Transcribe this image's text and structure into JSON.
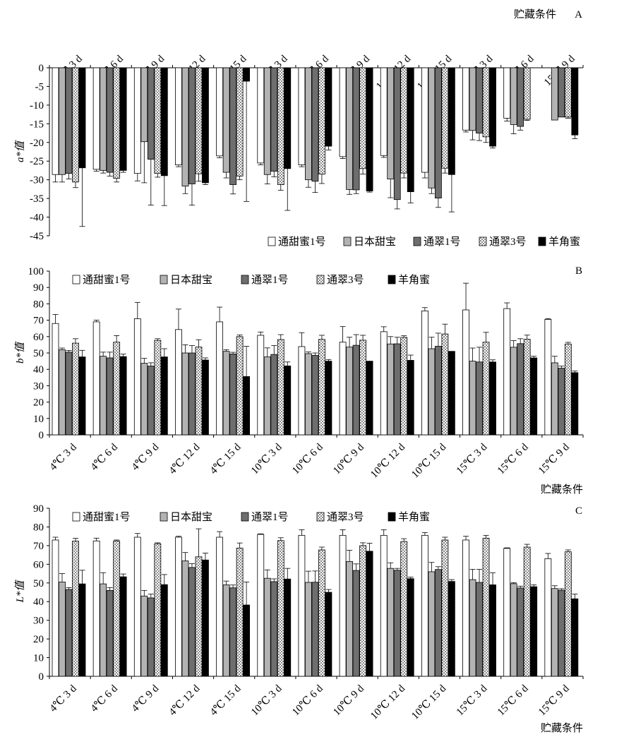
{
  "xlabel": "贮藏条件",
  "categories": [
    "4℃ 3 d",
    "4℃ 6 d",
    "4℃ 9 d",
    "4℃ 12 d",
    "4℃ 15 d",
    "10℃ 3 d",
    "10℃ 6 d",
    "10℃ 9 d",
    "10℃ 12 d",
    "10℃ 15 d",
    "15℃ 3 d",
    "15℃ 6 d",
    "15℃ 9 d"
  ],
  "series_names": [
    "通甜蜜1号",
    "日本甜宝",
    "通翠1号",
    "通翠3号",
    "羊角蜜"
  ],
  "series_styles": [
    {
      "fill": "#ffffff",
      "pattern": false
    },
    {
      "fill": "#b3b3b3",
      "pattern": false
    },
    {
      "fill": "#6e6e6e",
      "pattern": false
    },
    {
      "fill": "#ffffff",
      "pattern": true
    },
    {
      "fill": "#000000",
      "pattern": false
    }
  ],
  "chart_data": [
    {
      "panel_label": "A",
      "type": "bar",
      "ylabel": "a*值",
      "ylim": [
        -45,
        0
      ],
      "yticks": [
        0,
        -5,
        -10,
        -15,
        -20,
        -25,
        -30,
        -35,
        -40,
        -45
      ],
      "x_axis_position": "top",
      "legend_placement": "bottom-right",
      "categories": [
        "4℃ 3 d",
        "4℃ 6 d",
        "4℃ 9 d",
        "4℃ 12 d",
        "4℃ 15 d",
        "10℃ 3 d",
        "10℃ 6 d",
        "10℃ 9 d",
        "10℃ 12 d",
        "10℃ 15 d",
        "15℃ 3 d",
        "15℃ 6 d",
        "15℃ 9 d"
      ],
      "series": [
        {
          "name": "通甜蜜1号",
          "values": [
            -28.6,
            -27.2,
            -28.3,
            -26.0,
            -23.6,
            -25.5,
            -26.0,
            -23.8,
            -23.5,
            -28.0,
            -16.7,
            -13.5,
            0
          ],
          "errors": [
            2,
            0.5,
            2,
            0.5,
            0.5,
            0.5,
            0.5,
            0.5,
            0.5,
            1.5,
            0.5,
            0.8,
            0
          ]
        },
        {
          "name": "日本甜宝",
          "values": [
            -28.6,
            -27.5,
            -19.8,
            -31.7,
            -28.0,
            -28.6,
            -30.0,
            -32.6,
            -29.8,
            -32.2,
            -16.8,
            -15.2,
            -14.0
          ],
          "errors": [
            2,
            0.7,
            11,
            2,
            1.5,
            2.5,
            2,
            1.3,
            5,
            1.5,
            2.5,
            2.5,
            0
          ]
        },
        {
          "name": "通翠1号",
          "values": [
            -28.3,
            -28.0,
            -24.5,
            -31.1,
            -31.3,
            -27.7,
            -30.4,
            -32.7,
            -35.3,
            -34.9,
            -17.5,
            -15.7,
            -13.2
          ],
          "errors": [
            1.5,
            1,
            12.3,
            5.7,
            2.5,
            1.5,
            3,
            1,
            2.5,
            2.5,
            2,
            1,
            0
          ]
        },
        {
          "name": "通翠3号",
          "values": [
            -30.6,
            -29.6,
            -28.3,
            -28.4,
            -29.0,
            -31.3,
            -28.5,
            -27.0,
            -28.2,
            -26.9,
            -18.5,
            -13.8,
            -13.2
          ],
          "errors": [
            1.5,
            1,
            1,
            2,
            1,
            1.5,
            2.5,
            1.5,
            1.3,
            1.3,
            1.5,
            0.3,
            0.3
          ]
        },
        {
          "name": "羊角蜜",
          "values": [
            -26.8,
            -27.5,
            -28.9,
            -30.8,
            -3.6,
            -27.0,
            -21.0,
            -33.0,
            -33.2,
            -28.6,
            -21.0,
            0,
            -18.0
          ],
          "errors": [
            15.7,
            0.5,
            8,
            0.5,
            32.2,
            11.2,
            1,
            0.3,
            3,
            10,
            0.5,
            0,
            1
          ]
        }
      ]
    },
    {
      "panel_label": "B",
      "type": "bar",
      "ylabel": "b*值",
      "ylim": [
        0,
        100
      ],
      "yticks": [
        0,
        10,
        20,
        30,
        40,
        50,
        60,
        70,
        80,
        90,
        100
      ],
      "legend_placement": "top-left",
      "xlabel": "贮藏条件",
      "categories": [
        "4℃ 3 d",
        "4℃ 6 d",
        "4℃ 9 d",
        "4℃ 12 d",
        "4℃ 15 d",
        "10℃ 3 d",
        "10℃ 6 d",
        "10℃ 9 d",
        "10℃ 12 d",
        "10℃ 15 d",
        "15℃ 3 d",
        "15℃ 6 d",
        "15℃ 9 d"
      ],
      "series": [
        {
          "name": "通甜蜜1号",
          "values": [
            68.0,
            69.0,
            70.9,
            64.3,
            69.0,
            60.8,
            53.9,
            56.6,
            63.0,
            75.7,
            76.3,
            77.1,
            70.5
          ],
          "errors": [
            5.5,
            1,
            10,
            12.5,
            9,
            2,
            8.5,
            9.5,
            3,
            2,
            16.3,
            3.5,
            0.5
          ]
        },
        {
          "name": "日本甜宝",
          "values": [
            52.0,
            48.0,
            43.7,
            50.0,
            51.0,
            47.6,
            49.6,
            53.6,
            55.5,
            52.6,
            45.0,
            53.5,
            44.0
          ],
          "errors": [
            1,
            2.5,
            3,
            5,
            1,
            5.5,
            1,
            6,
            4.5,
            7,
            8,
            4,
            4
          ]
        },
        {
          "name": "通翠1号",
          "values": [
            50.5,
            47.0,
            42.0,
            50.0,
            49.4,
            49.1,
            48.5,
            54.7,
            55.6,
            54.1,
            44.5,
            55.7,
            40.7
          ],
          "errors": [
            1,
            3.5,
            2,
            4.5,
            1,
            5.4,
            1.5,
            6.5,
            4,
            8,
            9,
            3,
            1.3
          ]
        },
        {
          "name": "通翠3号",
          "values": [
            56.0,
            56.6,
            57.7,
            53.6,
            60.0,
            58.2,
            58.3,
            57.8,
            59.5,
            61.6,
            56.6,
            58.4,
            55.5
          ],
          "errors": [
            2.7,
            4,
            1,
            4.5,
            1,
            3,
            2.5,
            3,
            1,
            6,
            6,
            2.5,
            1
          ]
        },
        {
          "name": "羊角蜜",
          "values": [
            47.6,
            47.8,
            47.6,
            45.7,
            35.6,
            42.1,
            45.0,
            45.0,
            45.5,
            51.0,
            44.5,
            47.0,
            38.0
          ],
          "errors": [
            4,
            1.5,
            5,
            1.3,
            18.5,
            2.4,
            1,
            0,
            3.2,
            0,
            1.3,
            1,
            1
          ]
        }
      ]
    },
    {
      "panel_label": "C",
      "type": "bar",
      "ylabel": "L*值",
      "ylim": [
        0,
        90
      ],
      "yticks": [
        0,
        10,
        20,
        30,
        40,
        50,
        60,
        70,
        80,
        90
      ],
      "legend_placement": "top-left",
      "xlabel": "贮藏条件",
      "categories": [
        "4℃ 3 d",
        "4℃ 6 d",
        "4℃ 9 d",
        "4℃ 12 d",
        "4℃ 15 d",
        "10℃ 3 d",
        "10℃ 6 d",
        "10℃ 9 d",
        "10℃ 12 d",
        "10℃ 15 d",
        "15℃ 3 d",
        "15℃ 6 d",
        "15℃ 9 d"
      ],
      "series": [
        {
          "name": "通甜蜜1号",
          "values": [
            73.0,
            72.5,
            74.5,
            74.5,
            74.5,
            76.0,
            75.5,
            75.5,
            75.5,
            75.5,
            73.0,
            68.5,
            63.0
          ],
          "errors": [
            1.5,
            1.5,
            2,
            0.5,
            3,
            0.3,
            3,
            3,
            3,
            1.5,
            2,
            0.3,
            2.8
          ]
        },
        {
          "name": "日本甜宝",
          "values": [
            50.5,
            49.5,
            43.0,
            61.8,
            49.0,
            52.5,
            50.3,
            61.5,
            57.8,
            56.0,
            51.8,
            49.6,
            47.0
          ],
          "errors": [
            4.5,
            6,
            3,
            4.5,
            2,
            4.5,
            6,
            6,
            3,
            5,
            5.5,
            0.5,
            1.5
          ]
        },
        {
          "name": "通翠1号",
          "values": [
            46.5,
            46.0,
            42.0,
            58.3,
            47.4,
            50.7,
            50.4,
            56.7,
            56.8,
            57.2,
            50.3,
            47.3,
            46.1
          ],
          "errors": [
            1,
            1.5,
            2,
            2,
            1.5,
            1.5,
            6,
            3.5,
            1,
            1.5,
            7,
            1,
            0.8
          ]
        },
        {
          "name": "通翠3号",
          "values": [
            72.4,
            72.5,
            71.0,
            64.0,
            68.7,
            72.7,
            67.7,
            70.0,
            72.2,
            73.0,
            74.0,
            69.2,
            66.7
          ],
          "errors": [
            1.5,
            0.5,
            0.5,
            15,
            2.7,
            1.5,
            1.5,
            1.5,
            1.5,
            1.5,
            1.5,
            1.5,
            1
          ]
        },
        {
          "name": "羊角蜜",
          "values": [
            49.5,
            53.3,
            49.1,
            62.3,
            38.2,
            52.1,
            45.0,
            67.0,
            52.3,
            50.8,
            49.0,
            48.0,
            41.5
          ],
          "errors": [
            7.3,
            1.5,
            5.4,
            3.7,
            12.3,
            5.7,
            1.5,
            4.3,
            0.8,
            1,
            6.5,
            1,
            2.5
          ]
        }
      ]
    }
  ]
}
